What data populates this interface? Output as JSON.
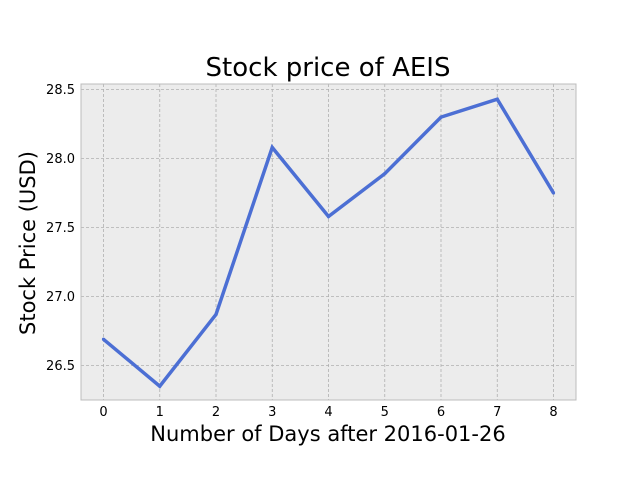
{
  "chart_data": {
    "type": "line",
    "title": "Stock price of AEIS",
    "xlabel": "Number of Days after 2016-01-26",
    "ylabel": "Stock Price (USD)",
    "x": [
      0,
      1,
      2,
      3,
      4,
      5,
      6,
      7,
      8
    ],
    "series": [
      {
        "values": [
          26.69,
          26.35,
          26.87,
          28.08,
          27.58,
          27.89,
          28.3,
          28.43,
          27.75
        ]
      }
    ],
    "xticks": [
      "0",
      "1",
      "2",
      "3",
      "4",
      "5",
      "6",
      "7",
      "8"
    ],
    "yticks": [
      "26.5",
      "27.0",
      "27.5",
      "28.0",
      "28.5"
    ],
    "ytick_values": [
      26.5,
      27.0,
      27.5,
      28.0,
      28.5
    ],
    "xlim": [
      -0.4,
      8.4
    ],
    "ylim": [
      26.25,
      28.54
    ],
    "grid": true,
    "colors": {
      "line": "#4c6fd4",
      "plot_background": "#ececec",
      "grid": "#b0b0b0",
      "frame": "#bcbcbc"
    }
  }
}
